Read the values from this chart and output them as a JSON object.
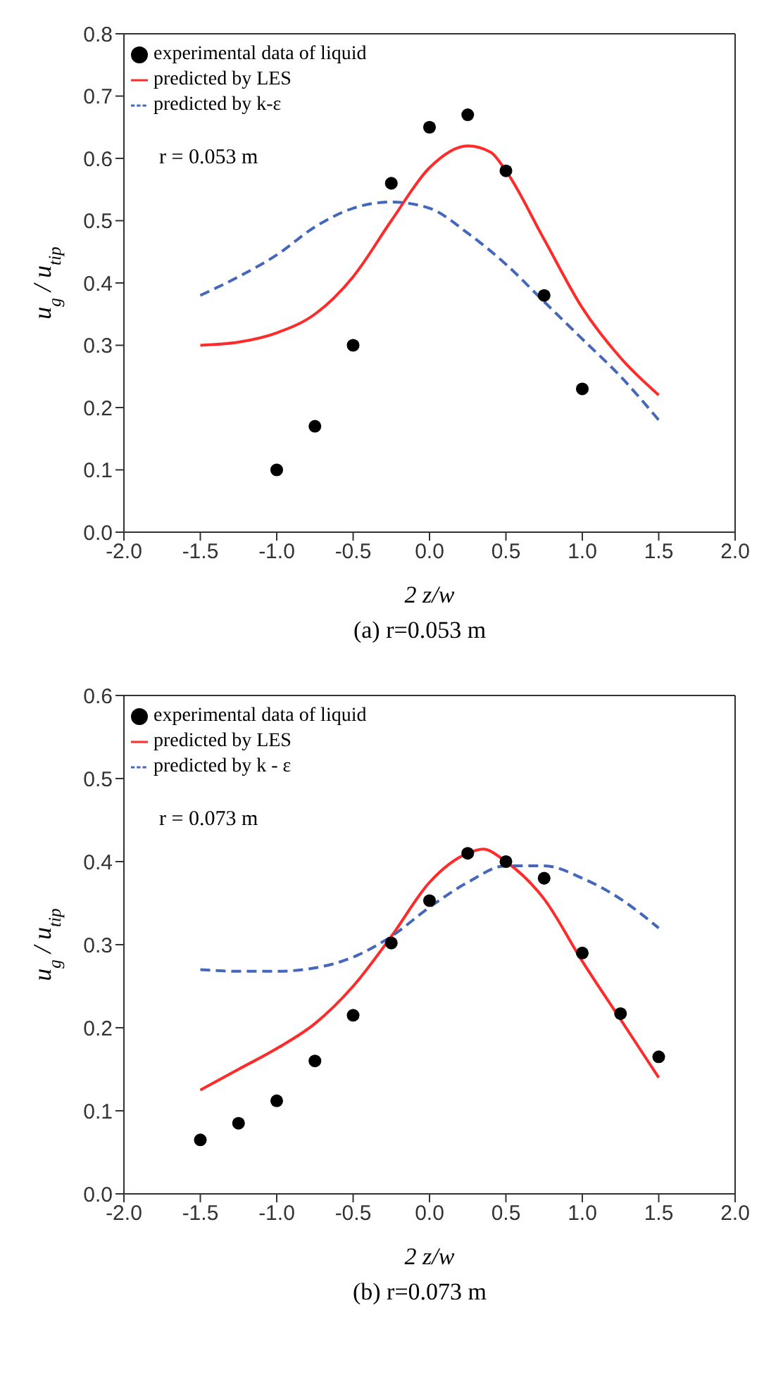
{
  "chart_data": [
    {
      "type": "scatter",
      "title": "(a) r=0.053 m",
      "xlabel": "2 z/w",
      "ylabel": "u$_{g}$ / u$_{tip}$",
      "annotations": [
        "r = 0.053 m"
      ],
      "legend": "top left",
      "xlim": [
        -2,
        2
      ],
      "ylim": [
        0,
        0.8
      ],
      "xticks": [
        {
          "value": -2,
          "label": "-2.0"
        },
        {
          "value": -1.5,
          "label": "-1.5"
        },
        {
          "value": -1,
          "label": "-1.0"
        },
        {
          "value": -0.5,
          "label": "-0.5"
        },
        {
          "value": 0,
          "label": "0.0"
        },
        {
          "value": 0.5,
          "label": "0.5"
        },
        {
          "value": 1,
          "label": "1.0"
        },
        {
          "value": 1.5,
          "label": "1.5"
        },
        {
          "value": 2,
          "label": "2.0"
        }
      ],
      "yticks": [
        {
          "value": 0,
          "label": "0.0"
        },
        0.1,
        0.2,
        0.3,
        0.4,
        0.5,
        0.6,
        0.7,
        0.8
      ],
      "series": [
        {
          "name": "experimental data of liquid",
          "marker": "circle",
          "color": "#000000",
          "x": [
            -1,
            -0.75,
            -0.5,
            -0.25,
            0,
            0.25,
            0.5,
            0.75,
            1
          ],
          "values": [
            0.1,
            0.17,
            0.3,
            0.56,
            0.65,
            0.67,
            0.58,
            0.38,
            0.23
          ]
        },
        {
          "name": "predicted by LES",
          "type": "line",
          "line_style": "solid",
          "color": "#ff2a2a",
          "x": [
            -1.5,
            -1.25,
            -1,
            -0.75,
            -0.5,
            -0.25,
            0,
            0.25,
            0.4,
            0.5,
            0.75,
            1,
            1.25,
            1.5
          ],
          "values": [
            0.3,
            0.305,
            0.32,
            0.35,
            0.41,
            0.5,
            0.585,
            0.62,
            0.61,
            0.58,
            0.47,
            0.36,
            0.28,
            0.22
          ]
        },
        {
          "name": "predicted by k-ε",
          "type": "line",
          "line_style": "dashed",
          "color": "#4466bb",
          "x": [
            -1.5,
            -1.25,
            -1,
            -0.75,
            -0.5,
            -0.25,
            0,
            0.25,
            0.5,
            0.75,
            1,
            1.25,
            1.5
          ],
          "values": [
            0.38,
            0.41,
            0.445,
            0.49,
            0.52,
            0.53,
            0.52,
            0.48,
            0.43,
            0.37,
            0.31,
            0.25,
            0.18
          ]
        }
      ]
    },
    {
      "type": "scatter",
      "title": "(b) r=0.073 m",
      "xlabel": "2 z/w",
      "ylabel": "u$_{g}$ / u$_{tip}$",
      "annotations": [
        "r = 0.073 m"
      ],
      "legend": "top left",
      "xlim": [
        -2,
        2
      ],
      "ylim": [
        0,
        0.6
      ],
      "xticks": [
        {
          "value": -2,
          "label": "-2.0"
        },
        {
          "value": -1.5,
          "label": "-1.5"
        },
        {
          "value": -1,
          "label": "-1.0"
        },
        {
          "value": -0.5,
          "label": "-0.5"
        },
        {
          "value": 0,
          "label": "0.0"
        },
        {
          "value": 0.5,
          "label": "0.5"
        },
        {
          "value": 1,
          "label": "1.0"
        },
        {
          "value": 1.5,
          "label": "1.5"
        },
        {
          "value": 2,
          "label": "2.0"
        }
      ],
      "yticks": [
        {
          "value": 0,
          "label": "0.0"
        },
        0.1,
        0.2,
        0.3,
        0.4,
        0.5,
        0.6
      ],
      "series": [
        {
          "name": "experimental data of liquid",
          "marker": "circle",
          "color": "#000000",
          "x": [
            -1.5,
            -1.25,
            -1,
            -0.75,
            -0.5,
            -0.25,
            0,
            0.25,
            0.5,
            0.75,
            1,
            1.25,
            1.5
          ],
          "values": [
            0.065,
            0.085,
            0.112,
            0.16,
            0.215,
            0.302,
            0.353,
            0.41,
            0.4,
            0.38,
            0.29,
            0.217,
            0.165
          ]
        },
        {
          "name": "predicted by LES",
          "type": "line",
          "line_style": "solid",
          "color": "#ff2a2a",
          "x": [
            -1.5,
            -1.25,
            -1,
            -0.75,
            -0.5,
            -0.25,
            0,
            0.25,
            0.35,
            0.5,
            0.75,
            1,
            1.25,
            1.5
          ],
          "values": [
            0.125,
            0.15,
            0.175,
            0.205,
            0.25,
            0.31,
            0.375,
            0.41,
            0.415,
            0.4,
            0.355,
            0.28,
            0.21,
            0.14
          ]
        },
        {
          "name": "predicted by k - ε",
          "type": "line",
          "line_style": "dashed",
          "color": "#4466bb",
          "x": [
            -1.5,
            -1.25,
            -1,
            -0.75,
            -0.5,
            -0.25,
            0,
            0.25,
            0.5,
            0.75,
            1,
            1.25,
            1.5
          ],
          "values": [
            0.27,
            0.268,
            0.268,
            0.272,
            0.285,
            0.31,
            0.345,
            0.375,
            0.395,
            0.395,
            0.38,
            0.355,
            0.32
          ]
        }
      ]
    }
  ]
}
